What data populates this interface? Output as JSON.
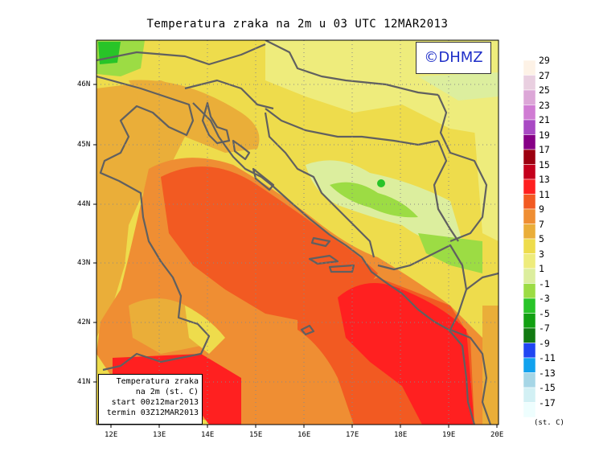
{
  "title": "Temperatura zraka na 2m u 03 UTC 12MAR2013",
  "logo": "©DHMZ",
  "legend_box": {
    "line1": "Temperatura zraka",
    "line2": "na 2m (st. C)",
    "line3": "start 00z12mar2013",
    "line4": "termin 03Z12MAR2013"
  },
  "lat_labels": [
    "46N",
    "45N",
    "44N",
    "43N",
    "42N",
    "41N"
  ],
  "lon_labels": [
    "12E",
    "13E",
    "14E",
    "15E",
    "16E",
    "17E",
    "18E",
    "19E",
    "20E"
  ],
  "colorbar": {
    "labels": [
      "29",
      "27",
      "25",
      "23",
      "21",
      "19",
      "17",
      "15",
      "13",
      "11",
      "9",
      "7",
      "5",
      "3",
      "1",
      "-1",
      "-3",
      "-5",
      "-7",
      "-9",
      "-11",
      "-13",
      "-15",
      "-17"
    ],
    "colors": [
      "#fdf2e6",
      "#e9cfe0",
      "#dca7d7",
      "#d07cd3",
      "#a94ac4",
      "#860086",
      "#9c0010",
      "#c4001c",
      "#ff2020",
      "#f25a22",
      "#ef8e33",
      "#eaae39",
      "#eedc4c",
      "#eeec7c",
      "#dcee9e",
      "#9cdc44",
      "#28c428",
      "#12a012",
      "#127a12",
      "#2046f2",
      "#12a2ee",
      "#a6d6e6",
      "#d2f0f4",
      "#eefefe"
    ],
    "units": "(st. C)"
  },
  "colors": {
    "coastline": "#606060",
    "grid": "#888888"
  }
}
